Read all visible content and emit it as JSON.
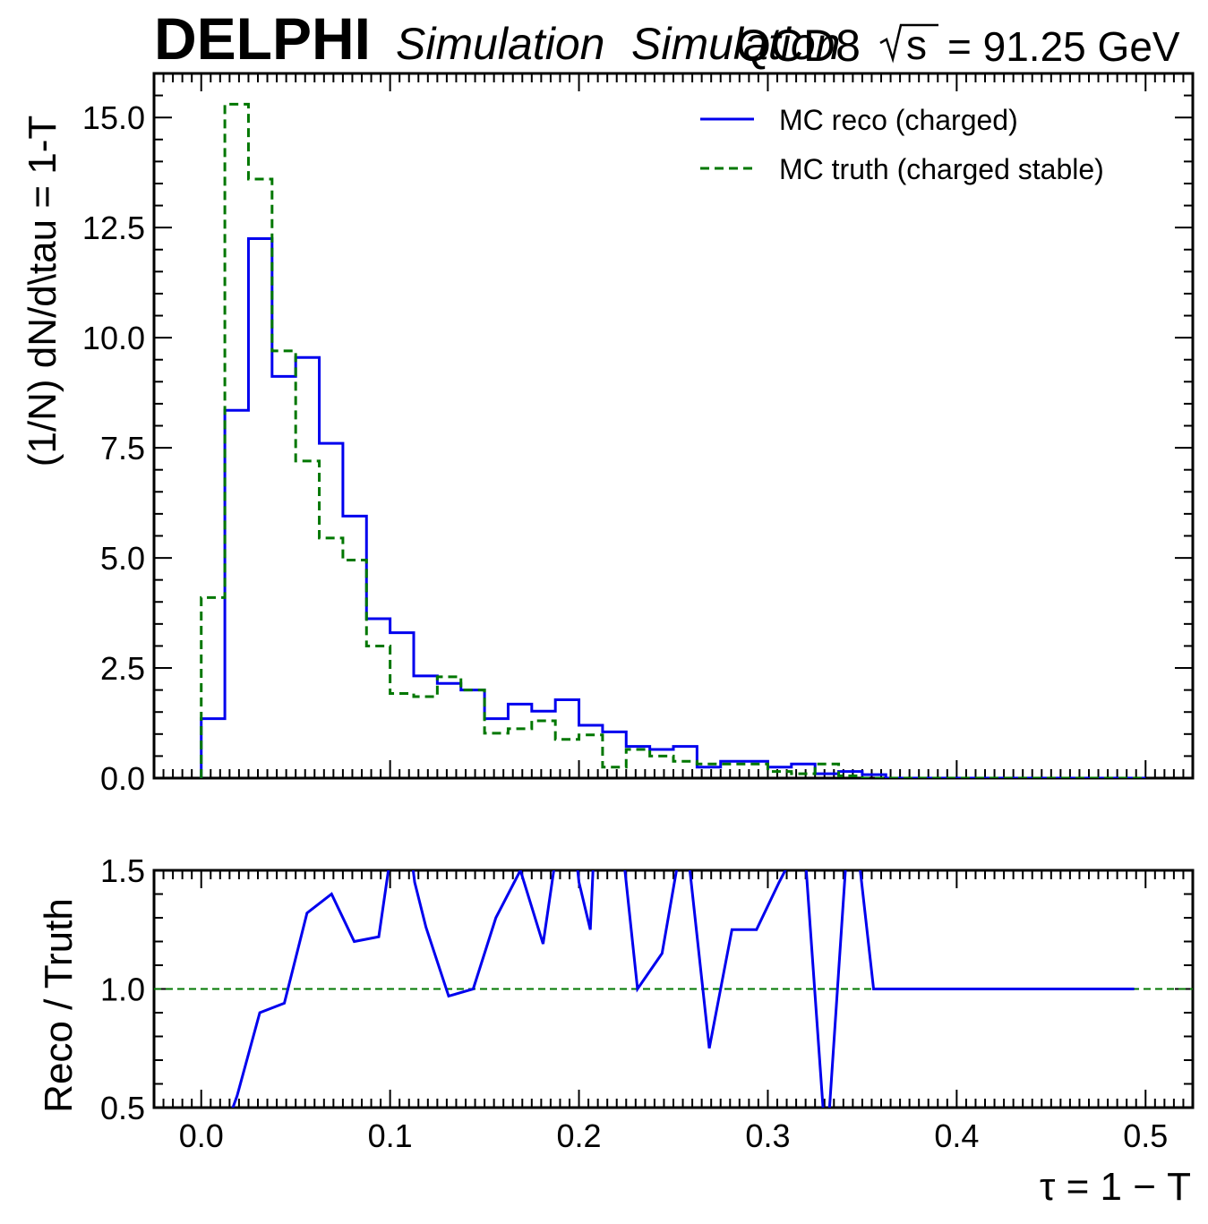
{
  "header": {
    "experiment": "DELPHI",
    "status": "Simulation",
    "status_overlap": "Simulation",
    "generator": "QCD8",
    "energy": "= 91.25 GeV",
    "sqrt_s": "s"
  },
  "colors": {
    "reco": "#0000ee",
    "truth": "#007700",
    "axis": "#000000"
  },
  "chart_data": [
    {
      "type": "line",
      "panel": "main",
      "ylabel": "(1/N) dN/d\\tau = 1-T",
      "xlim": [
        -0.025,
        0.525
      ],
      "ylim": [
        0,
        16
      ],
      "yticks": [
        "0.0",
        "2.5",
        "5.0",
        "7.5",
        "10.0",
        "12.5",
        "15.0"
      ],
      "legend": "top-right",
      "bin_edges": [
        0.0,
        0.0125,
        0.025,
        0.0375,
        0.05,
        0.0625,
        0.075,
        0.0875,
        0.1,
        0.1125,
        0.125,
        0.1375,
        0.15,
        0.1625,
        0.175,
        0.1875,
        0.2,
        0.2125,
        0.225,
        0.2375,
        0.25,
        0.2625,
        0.275,
        0.2875,
        0.3,
        0.3125,
        0.325,
        0.3375,
        0.35,
        0.3625,
        0.5
      ],
      "series": [
        {
          "name": "MC reco (charged)",
          "style": "solid",
          "values": [
            1.35,
            8.35,
            12.25,
            9.12,
            9.55,
            7.6,
            5.95,
            3.62,
            3.3,
            2.32,
            2.15,
            2.0,
            1.35,
            1.68,
            1.52,
            1.78,
            1.2,
            1.05,
            0.72,
            0.65,
            0.72,
            0.25,
            0.38,
            0.38,
            0.25,
            0.32,
            0.1,
            0.15,
            0.08,
            0.0
          ]
        },
        {
          "name": "MC truth (charged stable)",
          "style": "dashed",
          "values": [
            4.1,
            15.3,
            13.6,
            9.7,
            7.2,
            5.45,
            4.95,
            3.0,
            1.92,
            1.85,
            2.3,
            2.0,
            1.02,
            1.12,
            1.3,
            0.88,
            0.98,
            0.25,
            0.65,
            0.5,
            0.38,
            0.32,
            0.32,
            0.32,
            0.15,
            0.1,
            0.32,
            0.05,
            0.0,
            0.0
          ]
        }
      ]
    },
    {
      "type": "line",
      "panel": "ratio",
      "ylabel": "Reco / Truth",
      "xlabel": "τ = 1 − T",
      "xlim": [
        -0.025,
        0.525
      ],
      "ylim": [
        0.5,
        1.5
      ],
      "yticks": [
        "0.5",
        "1.0",
        "1.5"
      ],
      "xticks": [
        "0.0",
        "0.1",
        "0.2",
        "0.3",
        "0.4",
        "0.5"
      ],
      "reference_line": 1.0,
      "series": [
        {
          "name": "ratio",
          "x": [
            0.01,
            0.019,
            0.031,
            0.044,
            0.056,
            0.069,
            0.081,
            0.094,
            0.1,
            0.106,
            0.113,
            0.119,
            0.131,
            0.144,
            0.156,
            0.169,
            0.181,
            0.194,
            0.2,
            0.206,
            0.208,
            0.219,
            0.231,
            0.244,
            0.256,
            0.269,
            0.281,
            0.294,
            0.306,
            0.319,
            0.331,
            0.344,
            0.356,
            0.369,
            0.38,
            0.4,
            0.45,
            0.494
          ],
          "y": [
            0.35,
            0.55,
            0.9,
            0.94,
            1.32,
            1.4,
            1.2,
            1.22,
            1.55,
            1.9,
            1.45,
            1.26,
            0.97,
            1.0,
            1.3,
            1.5,
            1.19,
            1.9,
            1.45,
            1.25,
            1.6,
            1.9,
            1.0,
            1.15,
            1.7,
            0.75,
            1.25,
            1.25,
            1.45,
            1.65,
            0.3,
            1.85,
            1.0,
            1.0,
            1.0,
            1.0,
            1.0,
            1.0
          ]
        }
      ]
    }
  ]
}
